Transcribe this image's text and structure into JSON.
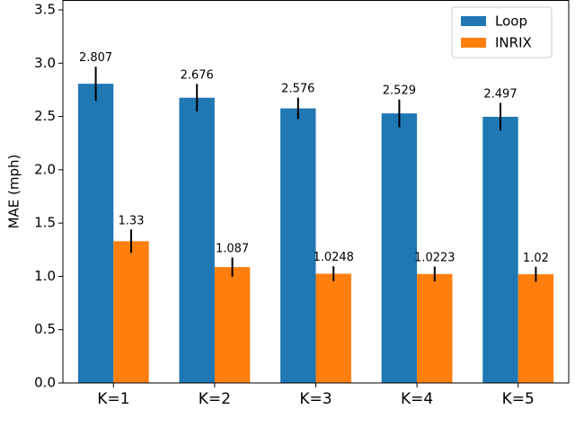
{
  "chart_data": {
    "type": "bar",
    "ylabel": "MAE (mph)",
    "categories": [
      "K=1",
      "K=2",
      "K=3",
      "K=4",
      "K=5"
    ],
    "series": [
      {
        "name": "Loop",
        "color": "#1f77b4",
        "values": [
          2.807,
          2.676,
          2.576,
          2.529,
          2.497
        ],
        "errors": [
          0.16,
          0.13,
          0.1,
          0.13,
          0.13
        ]
      },
      {
        "name": "INRIX",
        "color": "#ff7f0e",
        "values": [
          1.33,
          1.087,
          1.0248,
          1.0223,
          1.02
        ],
        "errors": [
          0.11,
          0.09,
          0.07,
          0.07,
          0.07
        ]
      }
    ],
    "ylim": [
      0,
      3.5
    ],
    "yticks": [
      {
        "value": 0,
        "label": "0.0"
      },
      0.5,
      {
        "value": 1,
        "label": "1.0"
      },
      1.5,
      {
        "value": 2,
        "label": "2.0"
      },
      2.5,
      {
        "value": 3,
        "label": "3.0"
      },
      3.5
    ],
    "legend": "upper right"
  }
}
